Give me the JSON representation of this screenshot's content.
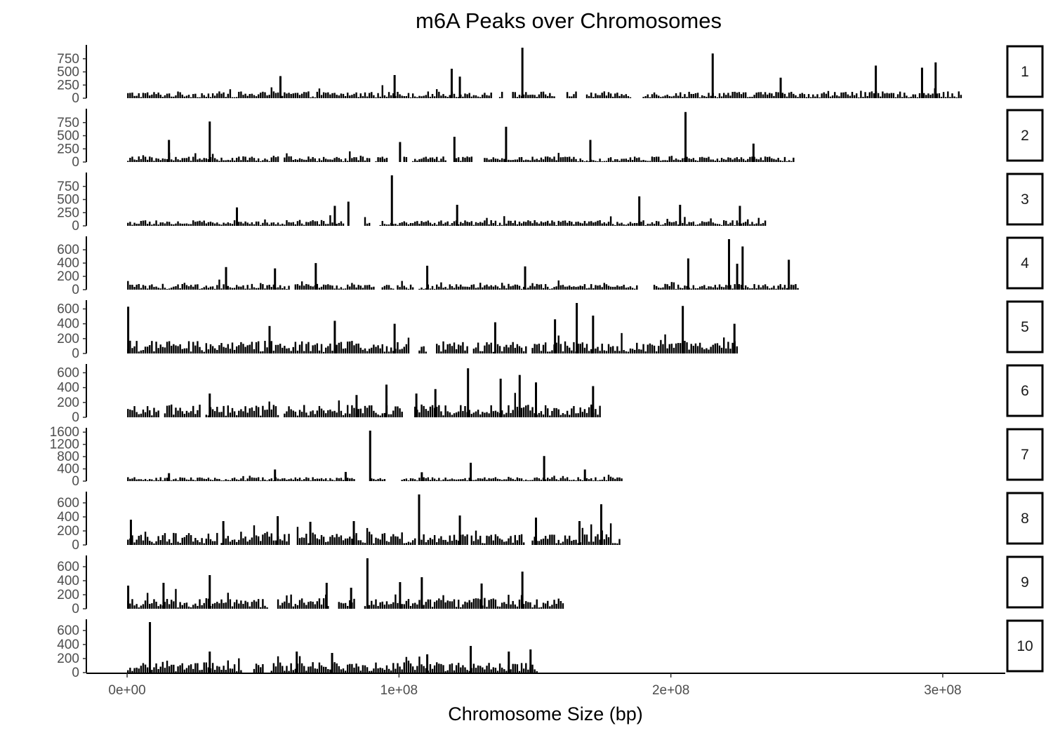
{
  "chart_data": {
    "type": "bar",
    "title": "m6A Peaks over Chromosomes",
    "xlabel": "Chromosome Size (bp)",
    "ylabel": "",
    "grid": false,
    "x_ticks": [
      {
        "value": 0,
        "label": "0e+00"
      },
      {
        "value": 100000000,
        "label": "1e+08"
      },
      {
        "value": 200000000,
        "label": "2e+08"
      },
      {
        "value": 300000000,
        "label": "3e+08"
      }
    ],
    "xlim": [
      -15000000,
      323000000
    ],
    "panels": [
      {
        "label": "1",
        "length": 307000000,
        "ylim": [
          0,
          960
        ],
        "yticks": [
          0,
          250,
          500,
          750
        ],
        "baseline": 60,
        "gaps": [
          [
            134000000,
            136000000
          ],
          [
            138000000,
            141000000
          ],
          [
            157000000,
            161000000
          ],
          [
            165000000,
            168000000
          ],
          [
            185000000,
            189000000
          ]
        ],
        "peaks": [
          [
            145000000,
            960
          ],
          [
            215000000,
            850
          ],
          [
            297000000,
            680
          ],
          [
            275000000,
            620
          ],
          [
            292000000,
            580
          ],
          [
            119000000,
            560
          ],
          [
            98000000,
            440
          ],
          [
            56000000,
            420
          ],
          [
            122000000,
            410
          ],
          [
            240000000,
            390
          ]
        ]
      },
      {
        "label": "2",
        "length": 245000000,
        "ylim": [
          0,
          960
        ],
        "yticks": [
          0,
          250,
          500,
          750
        ],
        "baseline": 50,
        "gaps": [
          [
            56000000,
            57000000
          ],
          [
            89000000,
            91000000
          ],
          [
            96000000,
            101000000
          ],
          [
            103000000,
            104000000
          ],
          [
            117000000,
            120000000
          ],
          [
            127000000,
            131000000
          ]
        ],
        "peaks": [
          [
            205000000,
            950
          ],
          [
            30000000,
            770
          ],
          [
            139000000,
            670
          ],
          [
            120000000,
            480
          ],
          [
            15000000,
            420
          ],
          [
            170000000,
            420
          ],
          [
            100000000,
            380
          ],
          [
            230000000,
            350
          ]
        ]
      },
      {
        "label": "3",
        "length": 235000000,
        "ylim": [
          0,
          960
        ],
        "yticks": [
          0,
          250,
          500,
          750
        ],
        "baseline": 50,
        "gaps": [
          [
            80000000,
            87000000
          ],
          [
            89000000,
            92000000
          ]
        ],
        "peaks": [
          [
            97000000,
            980
          ],
          [
            188000000,
            560
          ],
          [
            81000000,
            460
          ],
          [
            76000000,
            380
          ],
          [
            203000000,
            400
          ],
          [
            225000000,
            380
          ],
          [
            121000000,
            400
          ],
          [
            40000000,
            350
          ]
        ]
      },
      {
        "label": "4",
        "length": 247000000,
        "ylim": [
          0,
          760
        ],
        "yticks": [
          0,
          200,
          400,
          600
        ],
        "baseline": 40,
        "gaps": [
          [
            60000000,
            61000000
          ],
          [
            91000000,
            93000000
          ],
          [
            98000000,
            99000000
          ],
          [
            105000000,
            107000000
          ],
          [
            188000000,
            193000000
          ]
        ],
        "peaks": [
          [
            221000000,
            760
          ],
          [
            226000000,
            650
          ],
          [
            206000000,
            470
          ],
          [
            224000000,
            390
          ],
          [
            69000000,
            400
          ],
          [
            36000000,
            340
          ],
          [
            146000000,
            350
          ],
          [
            243000000,
            450
          ],
          [
            110000000,
            360
          ],
          [
            54000000,
            320
          ]
        ]
      },
      {
        "label": "5",
        "length": 224000000,
        "ylim": [
          0,
          680
        ],
        "yticks": [
          0,
          200,
          400,
          600
        ],
        "baseline": 80,
        "gaps": [
          [
            104000000,
            107000000
          ],
          [
            110000000,
            113000000
          ],
          [
            125000000,
            127000000
          ],
          [
            147000000,
            148000000
          ]
        ],
        "peaks": [
          [
            0,
            630
          ],
          [
            165000000,
            680
          ],
          [
            204000000,
            640
          ],
          [
            157000000,
            460
          ],
          [
            171000000,
            510
          ],
          [
            76000000,
            440
          ],
          [
            98000000,
            400
          ],
          [
            135000000,
            420
          ],
          [
            223000000,
            400
          ],
          [
            52000000,
            370
          ]
        ]
      },
      {
        "label": "6",
        "length": 174000000,
        "ylim": [
          0,
          680
        ],
        "yticks": [
          0,
          200,
          400,
          600
        ],
        "baseline": 80,
        "gaps": [
          [
            12000000,
            13000000
          ],
          [
            27000000,
            28000000
          ],
          [
            56000000,
            57000000
          ],
          [
            101000000,
            105000000
          ]
        ],
        "peaks": [
          [
            125000000,
            660
          ],
          [
            144000000,
            570
          ],
          [
            137000000,
            520
          ],
          [
            150000000,
            470
          ],
          [
            95000000,
            440
          ],
          [
            113000000,
            380
          ],
          [
            171000000,
            420
          ],
          [
            30000000,
            320
          ],
          [
            106000000,
            320
          ],
          [
            84000000,
            300
          ]
        ]
      },
      {
        "label": "7",
        "length": 182000000,
        "ylim": [
          0,
          1650
        ],
        "yticks": [
          0,
          400,
          800,
          1200,
          1600
        ],
        "baseline": 60,
        "gaps": [
          [
            84000000,
            89000000
          ],
          [
            95000000,
            100000000
          ]
        ],
        "peaks": [
          [
            89000000,
            1650
          ],
          [
            153000000,
            820
          ],
          [
            126000000,
            600
          ],
          [
            108000000,
            290
          ],
          [
            54000000,
            380
          ],
          [
            168000000,
            380
          ],
          [
            80000000,
            300
          ],
          [
            15000000,
            260
          ]
        ]
      },
      {
        "label": "8",
        "length": 181000000,
        "ylim": [
          0,
          720
        ],
        "yticks": [
          0,
          200,
          400,
          600
        ],
        "baseline": 80,
        "gaps": [
          [
            33000000,
            34000000
          ],
          [
            60000000,
            62000000
          ],
          [
            106000000,
            107000000
          ],
          [
            125000000,
            126000000
          ],
          [
            146000000,
            148000000
          ]
        ],
        "peaks": [
          [
            107000000,
            720
          ],
          [
            174000000,
            580
          ],
          [
            122000000,
            420
          ],
          [
            55000000,
            410
          ],
          [
            150000000,
            390
          ],
          [
            35000000,
            340
          ],
          [
            83000000,
            340
          ],
          [
            1000000,
            360
          ],
          [
            166000000,
            340
          ],
          [
            67000000,
            330
          ]
        ]
      },
      {
        "label": "9",
        "length": 160000000,
        "ylim": [
          0,
          720
        ],
        "yticks": [
          0,
          200,
          400,
          600
        ],
        "baseline": 70,
        "gaps": [
          [
            52000000,
            55000000
          ],
          [
            74000000,
            77000000
          ],
          [
            84000000,
            87000000
          ]
        ],
        "peaks": [
          [
            88000000,
            720
          ],
          [
            145000000,
            530
          ],
          [
            108000000,
            450
          ],
          [
            30000000,
            480
          ],
          [
            73000000,
            370
          ],
          [
            100000000,
            380
          ],
          [
            0,
            330
          ],
          [
            13000000,
            370
          ],
          [
            130000000,
            360
          ],
          [
            82000000,
            300
          ]
        ]
      },
      {
        "label": "10",
        "length": 151000000,
        "ylim": [
          0,
          720
        ],
        "yticks": [
          0,
          200,
          400,
          600
        ],
        "baseline": 70,
        "gaps": [
          [
            42000000,
            46000000
          ],
          [
            50000000,
            52000000
          ]
        ],
        "peaks": [
          [
            8000000,
            720
          ],
          [
            126000000,
            380
          ],
          [
            148000000,
            330
          ],
          [
            30000000,
            300
          ],
          [
            62000000,
            300
          ],
          [
            110000000,
            260
          ],
          [
            140000000,
            300
          ],
          [
            75000000,
            280
          ]
        ]
      }
    ]
  }
}
